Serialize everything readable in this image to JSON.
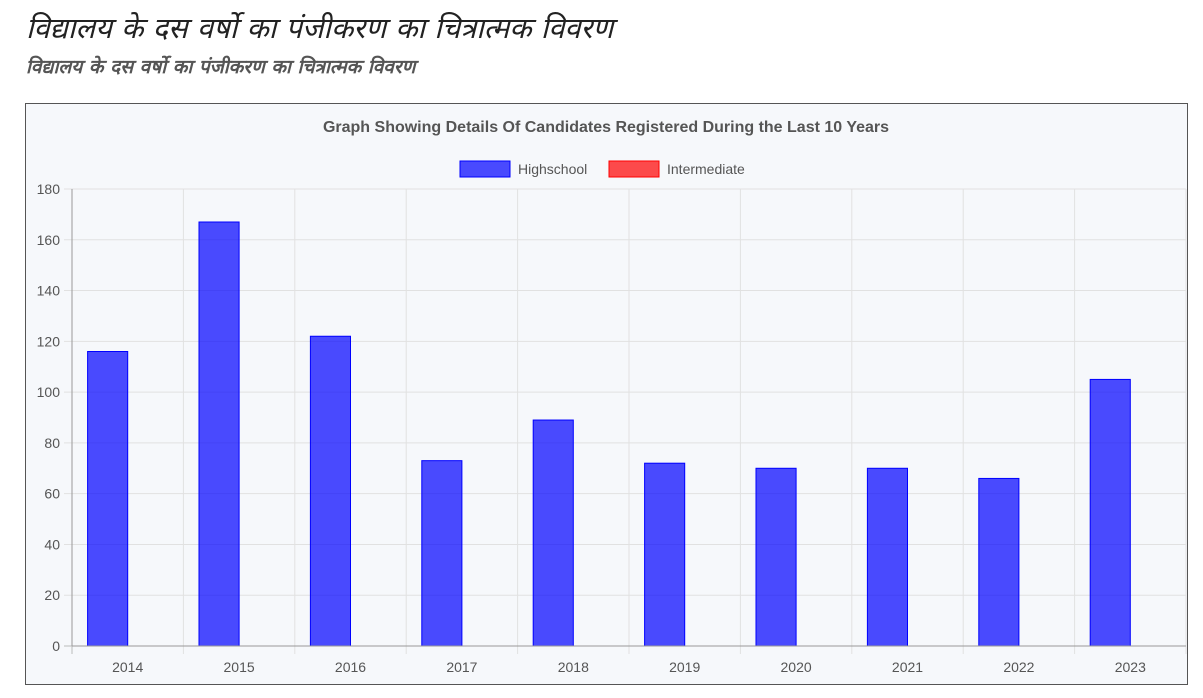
{
  "page": {
    "heading": "विद्यालय के दस वर्षो का पंजीकरण का चित्रात्मक विवरण",
    "subheading": "विद्यालय के दस वर्षो का पंजीकरण का चित्रात्मक विवरण"
  },
  "chart_data": {
    "type": "bar",
    "title": "Graph Showing Details Of Candidates Registered During the Last 10 Years",
    "xlabel": "",
    "ylabel": "",
    "categories": [
      "2014",
      "2015",
      "2016",
      "2017",
      "2018",
      "2019",
      "2020",
      "2021",
      "2022",
      "2023"
    ],
    "series": [
      {
        "name": "Highschool",
        "color": "#0000ff",
        "values": [
          116,
          167,
          122,
          73,
          89,
          72,
          70,
          70,
          66,
          105
        ]
      },
      {
        "name": "Intermediate",
        "color": "#ff0000",
        "values": [
          0,
          0,
          0,
          0,
          0,
          0,
          0,
          0,
          0,
          0
        ]
      }
    ],
    "ylim": [
      0,
      180
    ],
    "yticks": [
      0,
      20,
      40,
      60,
      80,
      100,
      120,
      140,
      160,
      180
    ],
    "grid": true,
    "legend": "top-center"
  }
}
